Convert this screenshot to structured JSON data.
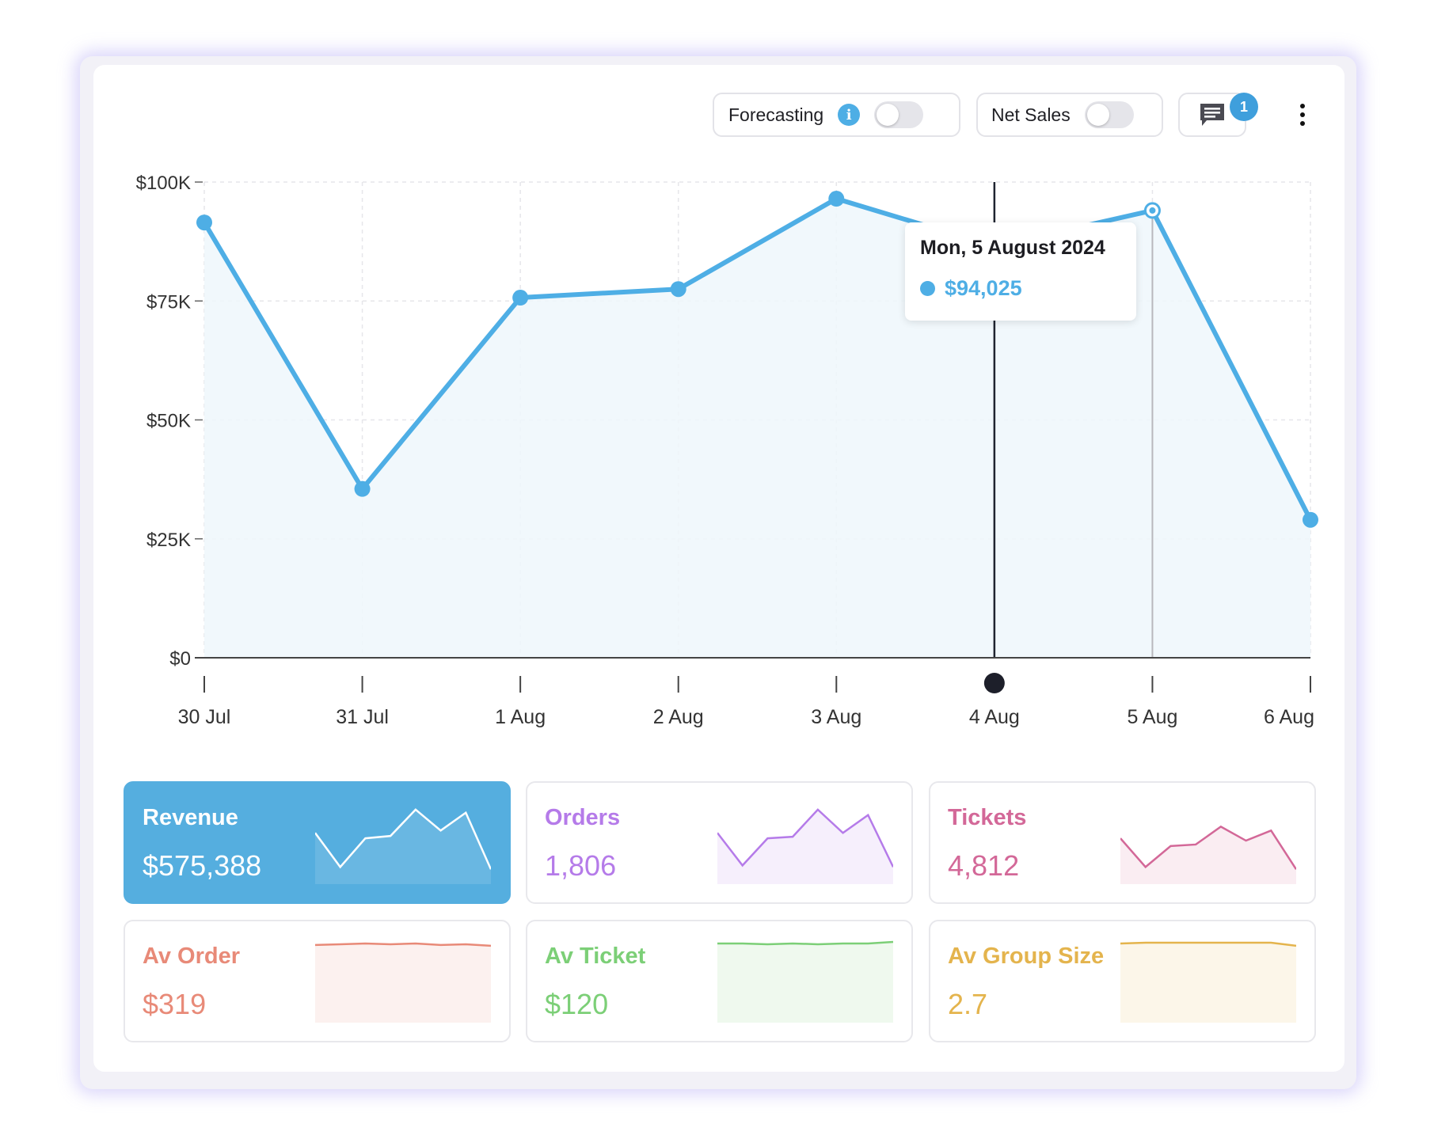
{
  "toolbar": {
    "forecasting_label": "Forecasting",
    "info_label": "i",
    "net_sales_label": "Net Sales",
    "comment_count": "1"
  },
  "colors": {
    "accent": "#4eaee5",
    "cursor_line": "#1f2430",
    "grid": "#e6e6ea"
  },
  "chart_data": {
    "type": "area",
    "x": [
      "30 Jul",
      "31 Jul",
      "1 Aug",
      "2 Aug",
      "3 Aug",
      "4 Aug",
      "5 Aug",
      "6 Aug"
    ],
    "categories": [
      "30 Jul",
      "31 Jul",
      "1 Aug",
      "2 Aug",
      "3 Aug",
      "4 Aug",
      "5 Aug",
      "6 Aug"
    ],
    "series": [
      {
        "values": [
          91500,
          35500,
          75700,
          77500,
          96500,
          86500,
          94025,
          29000
        ]
      }
    ],
    "yticks": [
      "$100K",
      "$75K",
      "$50K",
      "$25K",
      "$0"
    ],
    "ylim": [
      0,
      100000
    ],
    "grid": true,
    "hover_category": "4 Aug",
    "highlight_category": "5 Aug",
    "tooltip": {
      "date": "Mon, 5 August 2024",
      "value": "$94,025"
    }
  },
  "metrics": [
    {
      "label": "Revenue",
      "value": "$575,388",
      "color": "#ffffff",
      "active": true,
      "spark": [
        0.62,
        0.18,
        0.55,
        0.58,
        0.92,
        0.65,
        0.88,
        0.15
      ]
    },
    {
      "label": "Orders",
      "value": "1,806",
      "color": "#b57be9",
      "active": false,
      "spark": [
        0.62,
        0.2,
        0.55,
        0.57,
        0.92,
        0.62,
        0.85,
        0.18
      ]
    },
    {
      "label": "Tickets",
      "value": "4,812",
      "color": "#d36898",
      "active": false,
      "spark": [
        0.55,
        0.18,
        0.45,
        0.47,
        0.7,
        0.52,
        0.65,
        0.15
      ]
    },
    {
      "label": "Av Order",
      "value": "$319",
      "color": "#e88a78",
      "active": false,
      "spark": [
        0.96,
        0.97,
        0.98,
        0.97,
        0.98,
        0.96,
        0.97,
        0.95
      ]
    },
    {
      "label": "Av Ticket",
      "value": "$120",
      "color": "#7ccf77",
      "active": false,
      "spark": [
        0.98,
        0.98,
        0.97,
        0.98,
        0.97,
        0.98,
        0.98,
        1.0
      ]
    },
    {
      "label": "Av Group Size",
      "value": "2.7",
      "color": "#e4b44d",
      "active": false,
      "spark": [
        0.98,
        0.99,
        0.99,
        0.99,
        0.99,
        0.99,
        0.99,
        0.95
      ]
    }
  ]
}
